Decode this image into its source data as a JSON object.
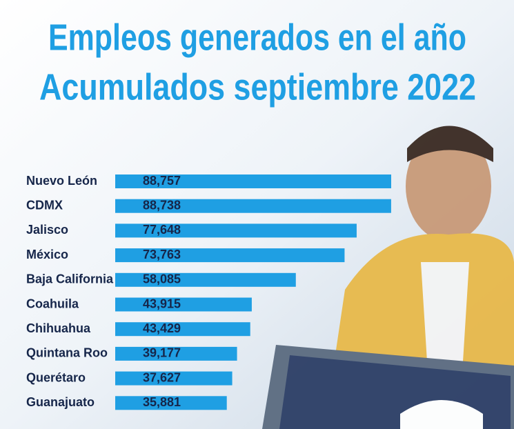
{
  "chart_data": {
    "type": "bar",
    "orientation": "horizontal",
    "title": "Empleos generados en el año",
    "subtitle": "Acumulados septiembre 2022",
    "categories": [
      "Nuevo León",
      "CDMX",
      "Jalisco",
      "México",
      "Baja California",
      "Coahuila",
      "Chihuahua",
      "Quintana Roo",
      "Querétaro",
      "Guanajuato"
    ],
    "values": [
      88757,
      88738,
      77648,
      73763,
      58085,
      43915,
      43429,
      39177,
      37627,
      35881
    ],
    "value_labels": [
      "88,757",
      "88,738",
      "77,648",
      "73,763",
      "58,085",
      "43,915",
      "43,429",
      "39,177",
      "37,627",
      "35,881"
    ],
    "color": "#1f9fe3"
  }
}
